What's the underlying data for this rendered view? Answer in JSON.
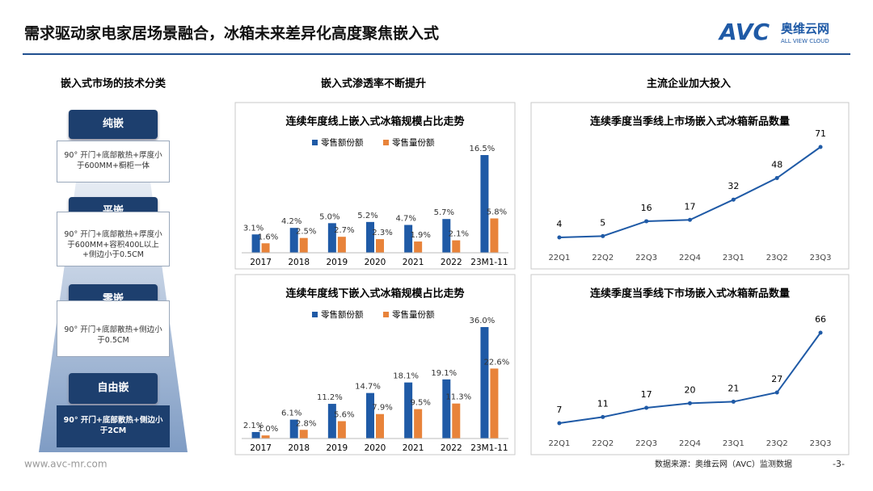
{
  "header": {
    "title": "需求驱动家电家居场景融合，冰箱未来差异化高度聚焦嵌入式",
    "logo": "AVC",
    "logo_cn": "奥维云网",
    "logo_en": "ALL VIEW CLOUD"
  },
  "sections": [
    "嵌入式市场的技术分类",
    "嵌入式渗透率不断提升",
    "主流企业加大投入"
  ],
  "types": [
    {
      "label": "纯嵌",
      "desc": "90° 开门+底部散热+厚度小于600MM+橱柜一体"
    },
    {
      "label": "平嵌",
      "desc": "90° 开门+底部散热+厚度小于600MM+容积400L以上+侧边小于0.5CM"
    },
    {
      "label": "零嵌",
      "desc": "90° 开门+底部散热+侧边小于0.5CM"
    },
    {
      "label": "自由嵌",
      "desc": "90° 开门+底部散热+侧边小于2CM"
    }
  ],
  "chart_data": [
    {
      "type": "bar",
      "title": "连续年度线上嵌入式冰箱规模占比走势",
      "categories": [
        "2017",
        "2018",
        "2019",
        "2020",
        "2021",
        "2022",
        "23M1-11"
      ],
      "series": [
        {
          "name": "零售额份额",
          "color": "#1f5aa6",
          "values": [
            3.1,
            4.2,
            5.0,
            5.2,
            4.7,
            5.7,
            16.5
          ],
          "value_labels": [
            "3.1%",
            "4.2%",
            "5.0%",
            "5.2%",
            "4.7%",
            "5.7%",
            "16.5%"
          ]
        },
        {
          "name": "零售量份额",
          "color": "#e8833a",
          "values": [
            1.6,
            2.5,
            2.7,
            2.3,
            1.9,
            2.1,
            5.8
          ],
          "value_labels": [
            "1.6%",
            "2.5%",
            "2.7%",
            "2.3%",
            "1.9%",
            "2.1%",
            "5.8%"
          ]
        }
      ]
    },
    {
      "type": "bar",
      "title": "连续年度线下嵌入式冰箱规模占比走势",
      "categories": [
        "2017",
        "2018",
        "2019",
        "2020",
        "2021",
        "2022",
        "23M1-11"
      ],
      "series": [
        {
          "name": "零售额份额",
          "color": "#1f5aa6",
          "values": [
            2.1,
            6.1,
            11.2,
            14.7,
            18.1,
            19.1,
            36.0
          ],
          "value_labels": [
            "2.1%",
            "6.1%",
            "11.2%",
            "14.7%",
            "18.1%",
            "19.1%",
            "36.0%"
          ]
        },
        {
          "name": "零售量份额",
          "color": "#e8833a",
          "values": [
            1.0,
            2.8,
            5.6,
            7.9,
            9.5,
            11.3,
            22.6
          ],
          "value_labels": [
            "1.0%",
            "2.8%",
            "5.6%",
            "7.9%",
            "9.5%",
            "11.3%",
            "22.6%"
          ]
        }
      ]
    },
    {
      "type": "line",
      "title": "连续季度当季线上市场嵌入式冰箱新品数量",
      "categories": [
        "22Q1",
        "22Q2",
        "22Q3",
        "22Q4",
        "23Q1",
        "23Q2",
        "23Q3"
      ],
      "values": [
        4,
        5,
        16,
        17,
        32,
        48,
        71
      ],
      "color": "#1f5aa6"
    },
    {
      "type": "line",
      "title": "连续季度当季线下市场嵌入式冰箱新品数量",
      "categories": [
        "22Q1",
        "22Q2",
        "22Q3",
        "22Q4",
        "23Q1",
        "23Q2",
        "23Q3"
      ],
      "values": [
        7,
        11,
        17,
        20,
        21,
        27,
        66
      ],
      "color": "#1f5aa6"
    }
  ],
  "footer": {
    "url": "www.avc-mr.com",
    "source": "数据来源：奥维云网（AVC）监测数据",
    "page": "-3-"
  }
}
